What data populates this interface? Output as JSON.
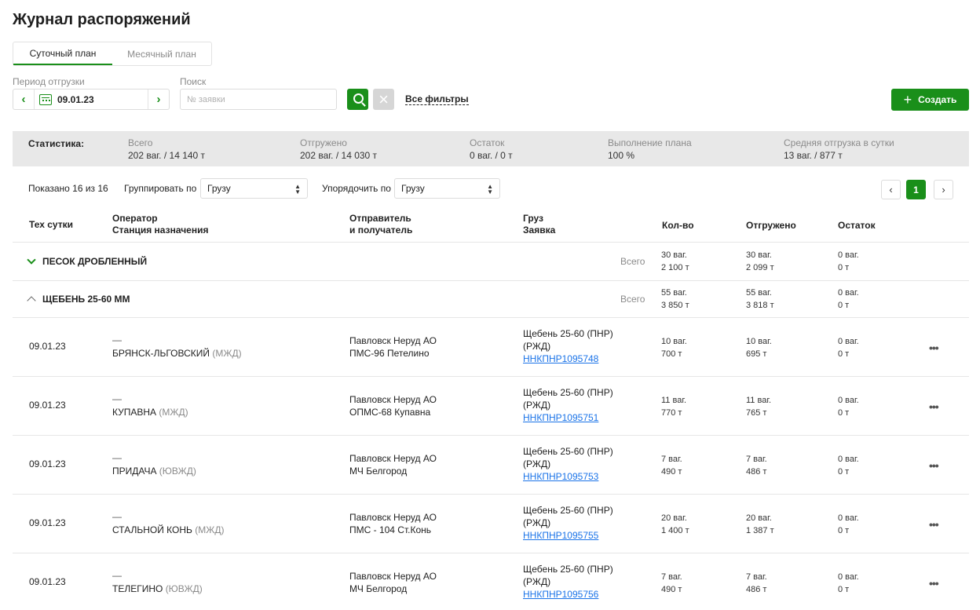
{
  "page": {
    "title": "Журнал распоряжений"
  },
  "tabs": [
    {
      "label": "Суточный план",
      "active": true
    },
    {
      "label": "Месячный план",
      "active": false
    }
  ],
  "filters": {
    "period_label": "Период отгрузки",
    "date": "09.01.23",
    "search_label": "Поиск",
    "search_placeholder": "№ заявки",
    "search_value": "",
    "all_filters": "Все фильтры",
    "create_label": "Создать"
  },
  "stats": {
    "title": "Статистика:",
    "items": [
      {
        "label": "Всего",
        "value": "202 ваг. / 14 140 т"
      },
      {
        "label": "Отгружено",
        "value": "202 ваг. / 14 030 т"
      },
      {
        "label": "Остаток",
        "value": "0 ваг. / 0 т"
      },
      {
        "label": "Выполнение плана",
        "value": "100 %"
      },
      {
        "label": "Средняя отгрузка в сутки",
        "value": "13 ваг. / 877 т"
      }
    ]
  },
  "toolbar": {
    "shown": "Показано 16 из 16",
    "group_label": "Группировать по",
    "group_value": "Грузу",
    "sort_label": "Упорядочить по",
    "sort_value": "Грузу",
    "prev": "‹",
    "page": "1",
    "next": "›"
  },
  "table": {
    "headers": {
      "date": "Тех сутки",
      "operator_1": "Оператор",
      "operator_2": "Станция назначения",
      "sender_1": "Отправитель",
      "sender_2": "и получатель",
      "cargo_1": "Груз",
      "cargo_2": "Заявка",
      "qty": "Кол-во",
      "shipped": "Отгружено",
      "rest": "Остаток"
    },
    "groups": [
      {
        "name": "ПЕСОК ДРОБЛЕННЫЙ",
        "expanded": false,
        "total_label": "Всего",
        "qty": [
          "30 ваг.",
          "2 100 т"
        ],
        "shipped": [
          "30 ваг.",
          "2 099 т"
        ],
        "rest": [
          "0 ваг.",
          "0 т"
        ]
      },
      {
        "name": "ЩЕБЕНЬ 25-60 ММ",
        "expanded": true,
        "total_label": "Всего",
        "qty": [
          "55 ваг.",
          "3 850 т"
        ],
        "shipped": [
          "55 ваг.",
          "3 818 т"
        ],
        "rest": [
          "0 ваг.",
          "0 т"
        ]
      }
    ],
    "rows": [
      {
        "date": "09.01.23",
        "operator": "—",
        "station": "БРЯНСК-ЛЬГОВСКИЙ",
        "railway": "(МЖД)",
        "sender": "Павловск Неруд АО",
        "receiver": "ПМС-96 Петелино",
        "cargo_1": "Щебень 25-60 (ПНР)",
        "cargo_2": "(РЖД)",
        "request": "ННКПНР1095748",
        "qty_w": "10 ваг.",
        "qty_t": "700 т",
        "shp_w": "10 ваг.",
        "shp_t": "695 т",
        "rest_w": "0 ваг.",
        "rest_t": "0 т",
        "more": "•••"
      },
      {
        "date": "09.01.23",
        "operator": "—",
        "station": "КУПАВНА",
        "railway": "(МЖД)",
        "sender": "Павловск Неруд АО",
        "receiver": "ОПМС-68 Купавна",
        "cargo_1": "Щебень 25-60 (ПНР)",
        "cargo_2": "(РЖД)",
        "request": "ННКПНР1095751",
        "qty_w": "11 ваг.",
        "qty_t": "770 т",
        "shp_w": "11 ваг.",
        "shp_t": "765 т",
        "rest_w": "0 ваг.",
        "rest_t": "0 т",
        "more": "•••"
      },
      {
        "date": "09.01.23",
        "operator": "—",
        "station": "ПРИДАЧА",
        "railway": "(ЮВЖД)",
        "sender": "Павловск Неруд АО",
        "receiver": "МЧ Белгород",
        "cargo_1": "Щебень 25-60 (ПНР)",
        "cargo_2": "(РЖД)",
        "request": "ННКПНР1095753",
        "qty_w": "7 ваг.",
        "qty_t": "490 т",
        "shp_w": "7 ваг.",
        "shp_t": "486 т",
        "rest_w": "0 ваг.",
        "rest_t": "0 т",
        "more": "•••"
      },
      {
        "date": "09.01.23",
        "operator": "—",
        "station": "СТАЛЬНОЙ КОНЬ",
        "railway": "(МЖД)",
        "sender": "Павловск Неруд АО",
        "receiver": "ПМС - 104 Ст.Конь",
        "cargo_1": "Щебень 25-60 (ПНР)",
        "cargo_2": "(РЖД)",
        "request": "ННКПНР1095755",
        "qty_w": "20 ваг.",
        "qty_t": "1 400 т",
        "shp_w": "20 ваг.",
        "shp_t": "1 387 т",
        "rest_w": "0 ваг.",
        "rest_t": "0 т",
        "more": "•••"
      },
      {
        "date": "09.01.23",
        "operator": "—",
        "station": "ТЕЛЕГИНО",
        "railway": "(ЮВЖД)",
        "sender": "Павловск Неруд АО",
        "receiver": "МЧ Белгород",
        "cargo_1": "Щебень 25-60 (ПНР)",
        "cargo_2": "(РЖД)",
        "request": "ННКПНР1095756",
        "qty_w": "7 ваг.",
        "qty_t": "490 т",
        "shp_w": "7 ваг.",
        "shp_t": "486 т",
        "rest_w": "0 ваг.",
        "rest_t": "0 т",
        "more": "•••"
      }
    ]
  },
  "colors": {
    "accent": "#1a8f1a",
    "link": "#1a73e8",
    "stats_bg": "#e8e8e8"
  }
}
